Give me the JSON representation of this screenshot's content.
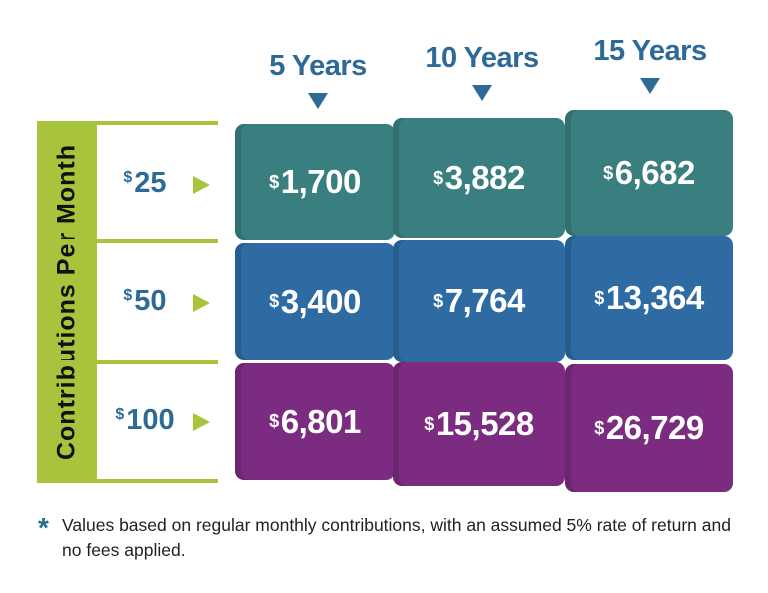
{
  "chart_data": {
    "type": "table",
    "row_axis_label": "Contributions Per Month",
    "columns": [
      "5 Years",
      "10 Years",
      "15 Years"
    ],
    "rows": [
      {
        "label": "25",
        "values": [
          "1,700",
          "3,882",
          "6,682"
        ]
      },
      {
        "label": "50",
        "values": [
          "3,400",
          "7,764",
          "13,364"
        ]
      },
      {
        "label": "100",
        "values": [
          "6,801",
          "15,528",
          "26,729"
        ]
      }
    ],
    "currency_symbol": "$",
    "row_colors": [
      "#3a7f80",
      "#2e6ba3",
      "#7b2c80"
    ],
    "accent_color": "#a8c43c",
    "header_color": "#2d6a96"
  },
  "footnote": {
    "marker": "*",
    "text": "Values based on regular monthly contributions, with an assumed 5% rate of return and no fees applied."
  }
}
